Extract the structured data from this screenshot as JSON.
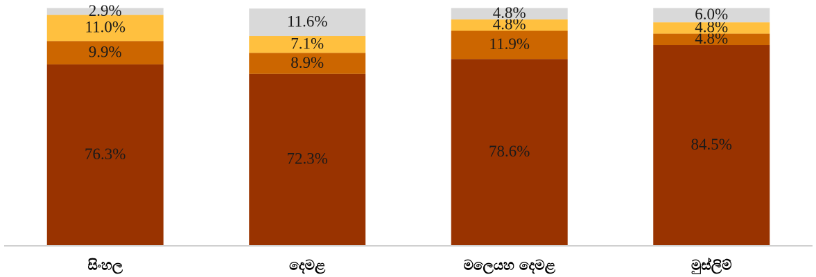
{
  "chart_data": {
    "type": "stacked_bar",
    "categories": [
      "සිංහල",
      "දෙමළ",
      "මලෙයහ දෙමළ",
      "මුස්ලිම්"
    ],
    "series": [
      {
        "color": "#993300",
        "values": [
          76.3,
          72.3,
          78.6,
          84.5
        ],
        "value_labels": [
          "76.3%",
          "72.3%",
          "78.6%",
          "84.5%"
        ]
      },
      {
        "color": "#cc6600",
        "values": [
          9.9,
          8.9,
          11.9,
          4.8
        ],
        "value_labels": [
          "9.9%",
          "8.9%",
          "11.9%",
          "4.8%"
        ]
      },
      {
        "color": "#ffc03f",
        "values": [
          11.0,
          7.1,
          4.8,
          4.8
        ],
        "value_labels": [
          "11.0%",
          "7.1%",
          "4.8%",
          "4.8%"
        ]
      },
      {
        "color": "#d9d9d9",
        "values": [
          2.9,
          11.6,
          4.8,
          6.0
        ],
        "value_labels": [
          "2.9%",
          "11.6%",
          "4.8%",
          "6.0%"
        ]
      }
    ],
    "ylim": [
      0,
      100
    ]
  }
}
